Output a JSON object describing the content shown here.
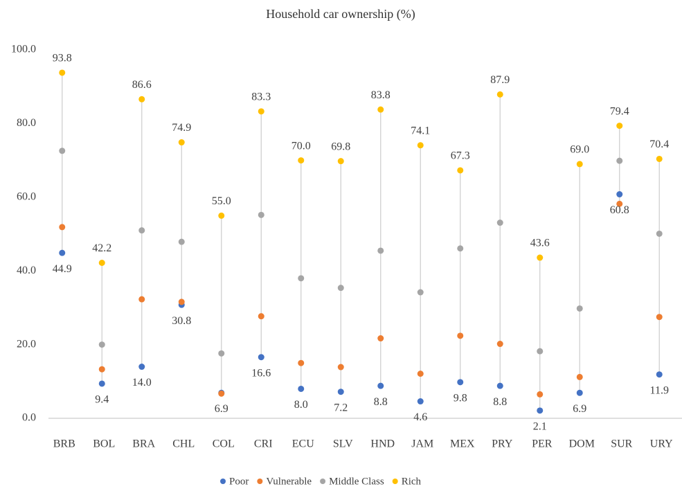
{
  "chart_data": {
    "type": "dot",
    "title": "Household car ownership (%)",
    "categories": [
      "BRB",
      "BOL",
      "BRA",
      "CHL",
      "COL",
      "CRI",
      "ECU",
      "SLV",
      "HND",
      "JAM",
      "MEX",
      "PRY",
      "PER",
      "DOM",
      "SUR",
      "URY"
    ],
    "series": [
      {
        "name": "Poor",
        "color": "#4472c4",
        "values": [
          44.9,
          9.4,
          14.0,
          30.8,
          6.9,
          16.6,
          8.0,
          7.2,
          8.8,
          4.6,
          9.8,
          8.8,
          2.1,
          6.9,
          60.8,
          11.9
        ],
        "value_labels": [
          "44.9",
          "9.4",
          "14.0",
          "30.8",
          "6.9",
          "16.6",
          "8.0",
          "7.2",
          "8.8",
          "4.6",
          "9.8",
          "8.8",
          "2.1",
          "6.9",
          "60.8",
          "11.9"
        ]
      },
      {
        "name": "Vulnerable",
        "color": "#ed7d31",
        "values": [
          51.9,
          13.3,
          32.3,
          31.6,
          6.7,
          27.7,
          15.0,
          13.9,
          21.7,
          12.1,
          22.4,
          20.2,
          6.5,
          11.2,
          58.2,
          27.5
        ]
      },
      {
        "name": "Middle Class",
        "color": "#a5a5a5",
        "values": [
          72.6,
          20.0,
          51.0,
          47.9,
          17.6,
          55.2,
          38.0,
          35.4,
          45.5,
          34.2,
          46.1,
          53.1,
          18.2,
          29.8,
          69.9,
          50.1
        ]
      },
      {
        "name": "Rich",
        "color": "#ffc000",
        "values": [
          93.8,
          42.2,
          86.6,
          74.9,
          55.0,
          83.3,
          70.0,
          69.8,
          83.8,
          74.1,
          67.3,
          87.9,
          43.6,
          69.0,
          79.4,
          70.4
        ],
        "value_labels": [
          "93.8",
          "42.2",
          "86.6",
          "74.9",
          "55.0",
          "83.3",
          "70.0",
          "69.8",
          "83.8",
          "74.1",
          "67.3",
          "87.9",
          "43.6",
          "69.0",
          "79.4",
          "70.4"
        ]
      }
    ],
    "ylim": [
      0,
      100
    ],
    "yticks": [
      {
        "value": 0,
        "label": "0.0"
      },
      {
        "value": 20,
        "label": "20.0"
      },
      {
        "value": 40,
        "label": "40.0"
      },
      {
        "value": 60,
        "label": "60.0"
      },
      {
        "value": 80,
        "label": "80.0"
      },
      {
        "value": 100,
        "label": "100.0"
      }
    ],
    "legend": "bottom"
  }
}
